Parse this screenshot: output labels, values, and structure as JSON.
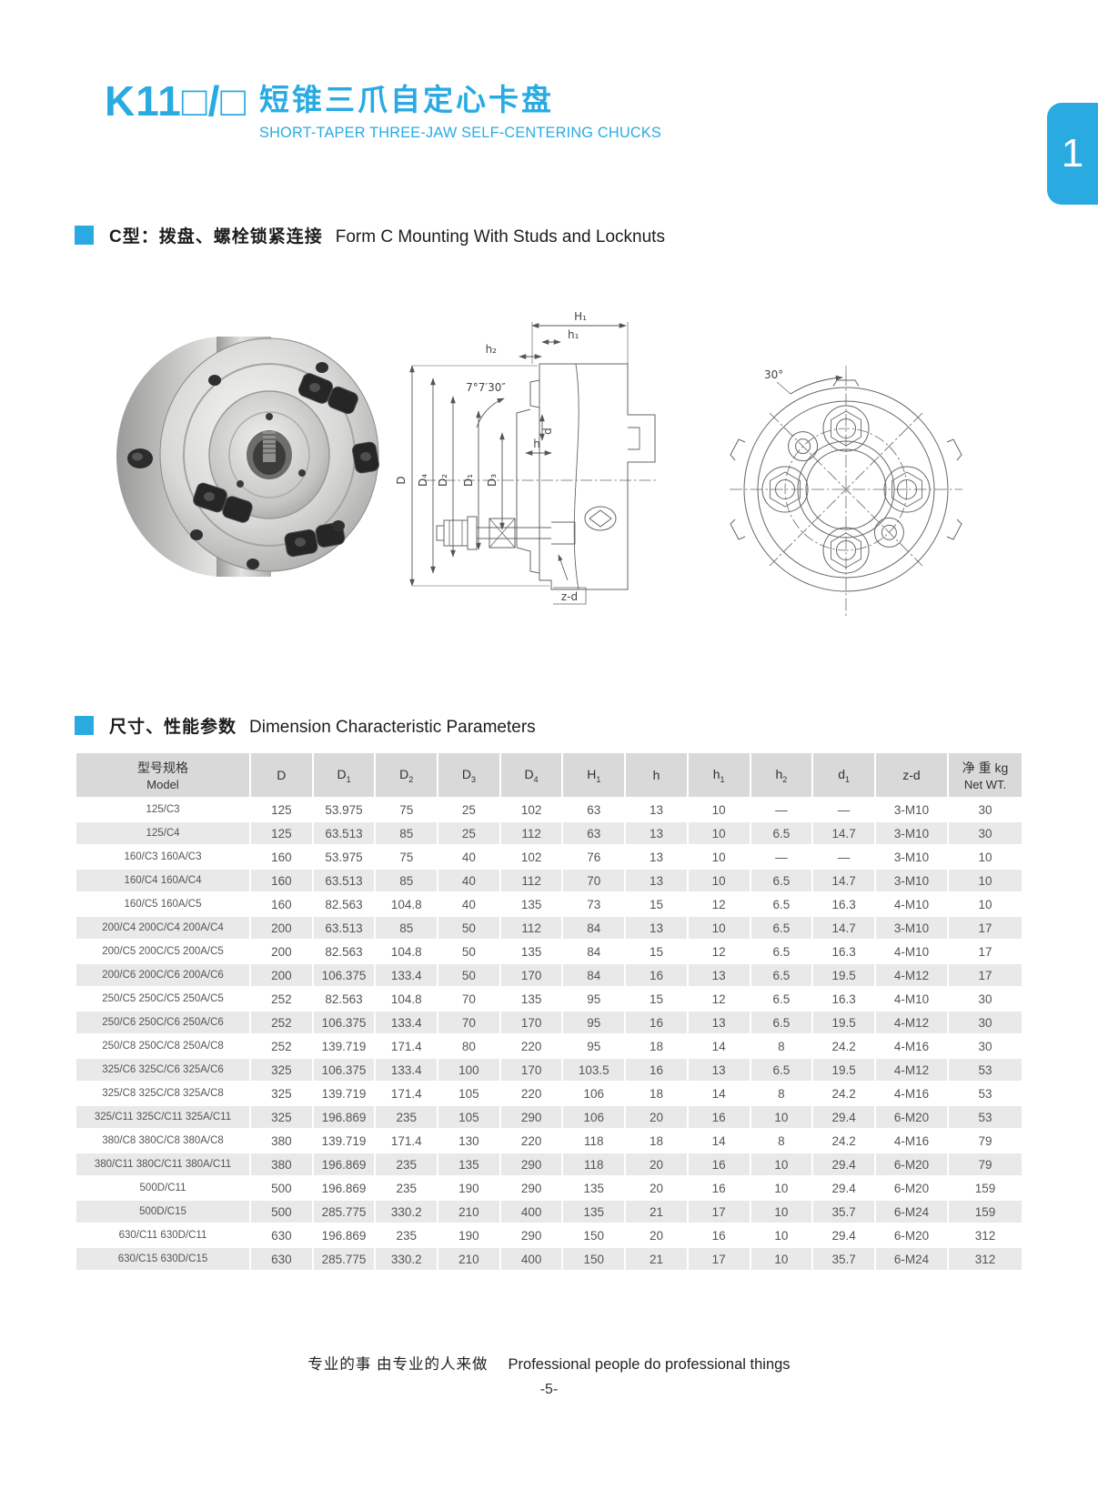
{
  "accent_color": "#29abe2",
  "header": {
    "model_code": "K11□/□",
    "title_zh": "短锥三爪自定心卡盘",
    "title_en": "SHORT-TAPER  THREE-JAW  SELF-CENTERING  CHUCKS",
    "tab": "1"
  },
  "section_mounting": {
    "label_zh": "C型：拨盘、螺栓锁紧连接",
    "label_en": "Form C Mounting With Studs and Locknuts"
  },
  "section_dimensions": {
    "label_zh": "尺寸、性能参数",
    "label_en": "Dimension  Characteristic Parameters"
  },
  "drawings": {
    "cross_section_labels": {
      "H1": "H₁",
      "h1": "h₁",
      "h2": "h₂",
      "angle": "7°7′30″",
      "d": "d",
      "h": "h",
      "D": "D",
      "D4": "D₄",
      "D2": "D₂",
      "D1": "D₁",
      "D3": "D₃",
      "zd": "z-d"
    },
    "front_view_labels": {
      "angle": "30°"
    }
  },
  "table": {
    "columns": [
      {
        "zh": "型号规格",
        "en": "Model"
      },
      {
        "main": "D",
        "sub": ""
      },
      {
        "main": "D",
        "sub": "1"
      },
      {
        "main": "D",
        "sub": "2"
      },
      {
        "main": "D",
        "sub": "3"
      },
      {
        "main": "D",
        "sub": "4"
      },
      {
        "main": "H",
        "sub": "1"
      },
      {
        "main": "h",
        "sub": ""
      },
      {
        "main": "h",
        "sub": "1"
      },
      {
        "main": "h",
        "sub": "2"
      },
      {
        "main": "d",
        "sub": "1"
      },
      {
        "main": "z-d",
        "sub": ""
      },
      {
        "zh": "净 重 kg",
        "en": "Net WT."
      }
    ],
    "rows": [
      {
        "model": "125/C3",
        "values": [
          "125",
          "53.975",
          "75",
          "25",
          "102",
          "63",
          "13",
          "10",
          "—",
          "—",
          "3-M10",
          "30"
        ]
      },
      {
        "model": "125/C4",
        "values": [
          "125",
          "63.513",
          "85",
          "25",
          "112",
          "63",
          "13",
          "10",
          "6.5",
          "14.7",
          "3-M10",
          "30"
        ]
      },
      {
        "model": "160/C3 160A/C3",
        "values": [
          "160",
          "53.975",
          "75",
          "40",
          "102",
          "76",
          "13",
          "10",
          "—",
          "—",
          "3-M10",
          "10"
        ]
      },
      {
        "model": "160/C4 160A/C4",
        "values": [
          "160",
          "63.513",
          "85",
          "40",
          "112",
          "70",
          "13",
          "10",
          "6.5",
          "14.7",
          "3-M10",
          "10"
        ]
      },
      {
        "model": "160/C5 160A/C5",
        "values": [
          "160",
          "82.563",
          "104.8",
          "40",
          "135",
          "73",
          "15",
          "12",
          "6.5",
          "16.3",
          "4-M10",
          "10"
        ]
      },
      {
        "model": "200/C4 200C/C4 200A/C4",
        "values": [
          "200",
          "63.513",
          "85",
          "50",
          "112",
          "84",
          "13",
          "10",
          "6.5",
          "14.7",
          "3-M10",
          "17"
        ]
      },
      {
        "model": "200/C5 200C/C5 200A/C5",
        "values": [
          "200",
          "82.563",
          "104.8",
          "50",
          "135",
          "84",
          "15",
          "12",
          "6.5",
          "16.3",
          "4-M10",
          "17"
        ]
      },
      {
        "model": "200/C6 200C/C6 200A/C6",
        "values": [
          "200",
          "106.375",
          "133.4",
          "50",
          "170",
          "84",
          "16",
          "13",
          "6.5",
          "19.5",
          "4-M12",
          "17"
        ]
      },
      {
        "model": "250/C5 250C/C5 250A/C5",
        "values": [
          "252",
          "82.563",
          "104.8",
          "70",
          "135",
          "95",
          "15",
          "12",
          "6.5",
          "16.3",
          "4-M10",
          "30"
        ]
      },
      {
        "model": "250/C6 250C/C6 250A/C6",
        "values": [
          "252",
          "106.375",
          "133.4",
          "70",
          "170",
          "95",
          "16",
          "13",
          "6.5",
          "19.5",
          "4-M12",
          "30"
        ]
      },
      {
        "model": "250/C8 250C/C8 250A/C8",
        "values": [
          "252",
          "139.719",
          "171.4",
          "80",
          "220",
          "95",
          "18",
          "14",
          "8",
          "24.2",
          "4-M16",
          "30"
        ]
      },
      {
        "model": "325/C6 325C/C6 325A/C6",
        "values": [
          "325",
          "106.375",
          "133.4",
          "100",
          "170",
          "103.5",
          "16",
          "13",
          "6.5",
          "19.5",
          "4-M12",
          "53"
        ]
      },
      {
        "model": "325/C8 325C/C8 325A/C8",
        "values": [
          "325",
          "139.719",
          "171.4",
          "105",
          "220",
          "106",
          "18",
          "14",
          "8",
          "24.2",
          "4-M16",
          "53"
        ]
      },
      {
        "model": "325/C11 325C/C11 325A/C11",
        "values": [
          "325",
          "196.869",
          "235",
          "105",
          "290",
          "106",
          "20",
          "16",
          "10",
          "29.4",
          "6-M20",
          "53"
        ]
      },
      {
        "model": "380/C8 380C/C8 380A/C8",
        "values": [
          "380",
          "139.719",
          "171.4",
          "130",
          "220",
          "118",
          "18",
          "14",
          "8",
          "24.2",
          "4-M16",
          "79"
        ]
      },
      {
        "model": "380/C11 380C/C11 380A/C11",
        "values": [
          "380",
          "196.869",
          "235",
          "135",
          "290",
          "118",
          "20",
          "16",
          "10",
          "29.4",
          "6-M20",
          "79"
        ]
      },
      {
        "model": "500D/C11",
        "values": [
          "500",
          "196.869",
          "235",
          "190",
          "290",
          "135",
          "20",
          "16",
          "10",
          "29.4",
          "6-M20",
          "159"
        ]
      },
      {
        "model": "500D/C15",
        "values": [
          "500",
          "285.775",
          "330.2",
          "210",
          "400",
          "135",
          "21",
          "17",
          "10",
          "35.7",
          "6-M24",
          "159"
        ]
      },
      {
        "model": "630/C11 630D/C11",
        "values": [
          "630",
          "196.869",
          "235",
          "190",
          "290",
          "150",
          "20",
          "16",
          "10",
          "29.4",
          "6-M20",
          "312"
        ]
      },
      {
        "model": "630/C15 630D/C15",
        "values": [
          "630",
          "285.775",
          "330.2",
          "210",
          "400",
          "150",
          "21",
          "17",
          "10",
          "35.7",
          "6-M24",
          "312"
        ]
      }
    ]
  },
  "footer": {
    "slogan_zh": "专业的事  由专业的人来做",
    "slogan_en": "Professional people do professional things",
    "page_number": "-5-"
  }
}
